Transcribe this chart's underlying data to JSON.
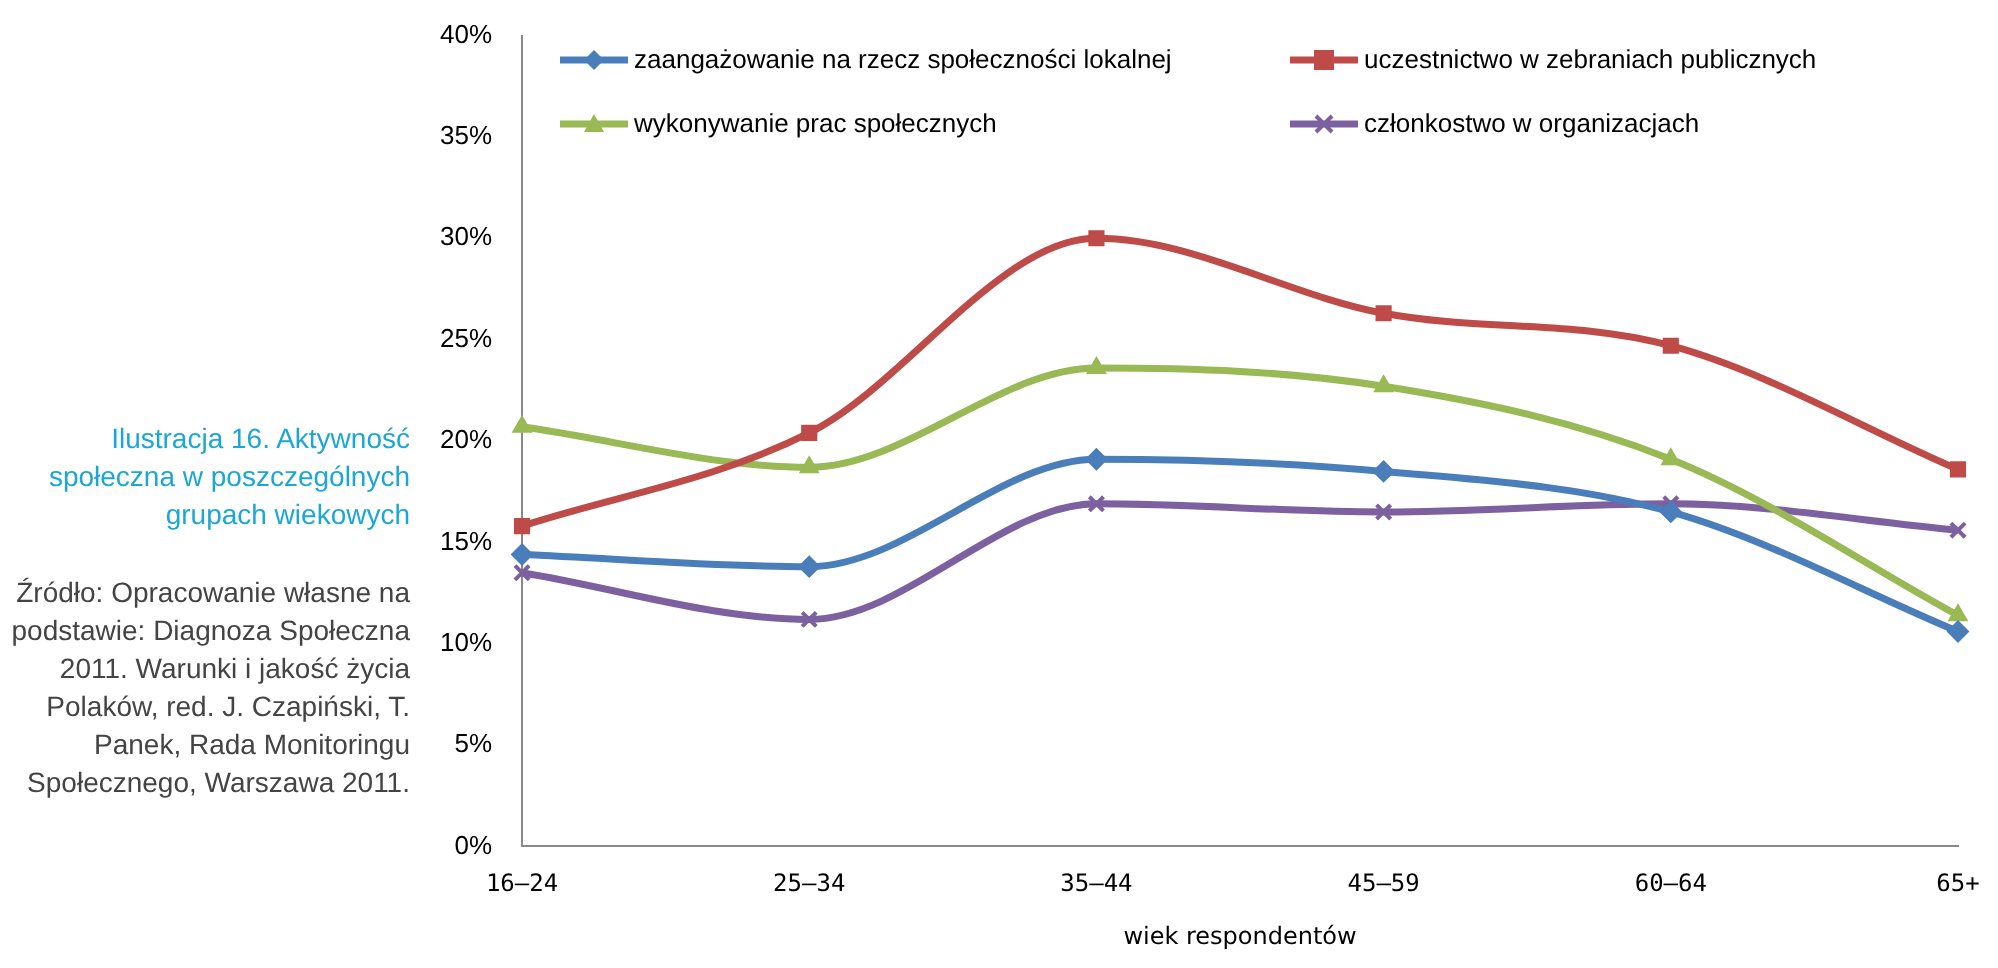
{
  "chart_data": {
    "type": "line",
    "title": "Ilustracja 16. Aktywność społeczna w poszczególnych grupach wiekowych",
    "annotations": [
      "Źródło: Opracowanie własne na podstawie: Diagnoza Społeczna 2011. Warunki i jakość życia Polaków, red. J. Czapiński, T. Panek, Rada Monitoringu Społecznego, Warszawa 2011."
    ],
    "xlabel": "wiek respondentów",
    "categories": [
      "16–24",
      "25–34",
      "35–44",
      "45–59",
      "60–64",
      "65+"
    ],
    "series": [
      {
        "name": "zaangażowanie na rzecz społeczności lokalnej",
        "color": "#4a7ebb",
        "marker": "diamond",
        "values": [
          14.4,
          13.8,
          19.1,
          18.5,
          16.5,
          10.6
        ]
      },
      {
        "name": "uczestnictwo w zebraniach publicznych",
        "color": "#be4b48",
        "marker": "square",
        "values": [
          15.8,
          20.4,
          30.0,
          26.3,
          24.7,
          18.6
        ]
      },
      {
        "name": "wykonywanie prac społecznych",
        "color": "#98b954",
        "marker": "triangle",
        "values": [
          20.7,
          18.7,
          23.6,
          22.7,
          19.1,
          11.4
        ]
      },
      {
        "name": "członkostwo w organizacjach",
        "color": "#7d60a0",
        "marker": "cross",
        "values": [
          13.5,
          11.2,
          16.9,
          16.5,
          16.9,
          15.6
        ]
      }
    ],
    "ylim": [
      0,
      40
    ],
    "yticks": [
      {
        "value": 0,
        "label": "0%"
      },
      {
        "value": 5,
        "label": "5%"
      },
      {
        "value": 10,
        "label": "10%"
      },
      {
        "value": 15,
        "label": "15%"
      },
      {
        "value": 20,
        "label": "20%"
      },
      {
        "value": 25,
        "label": "25%"
      },
      {
        "value": 30,
        "label": "30%"
      },
      {
        "value": 35,
        "label": "35%"
      },
      {
        "value": 40,
        "label": "40%"
      }
    ],
    "grid": false,
    "legend": "top"
  }
}
